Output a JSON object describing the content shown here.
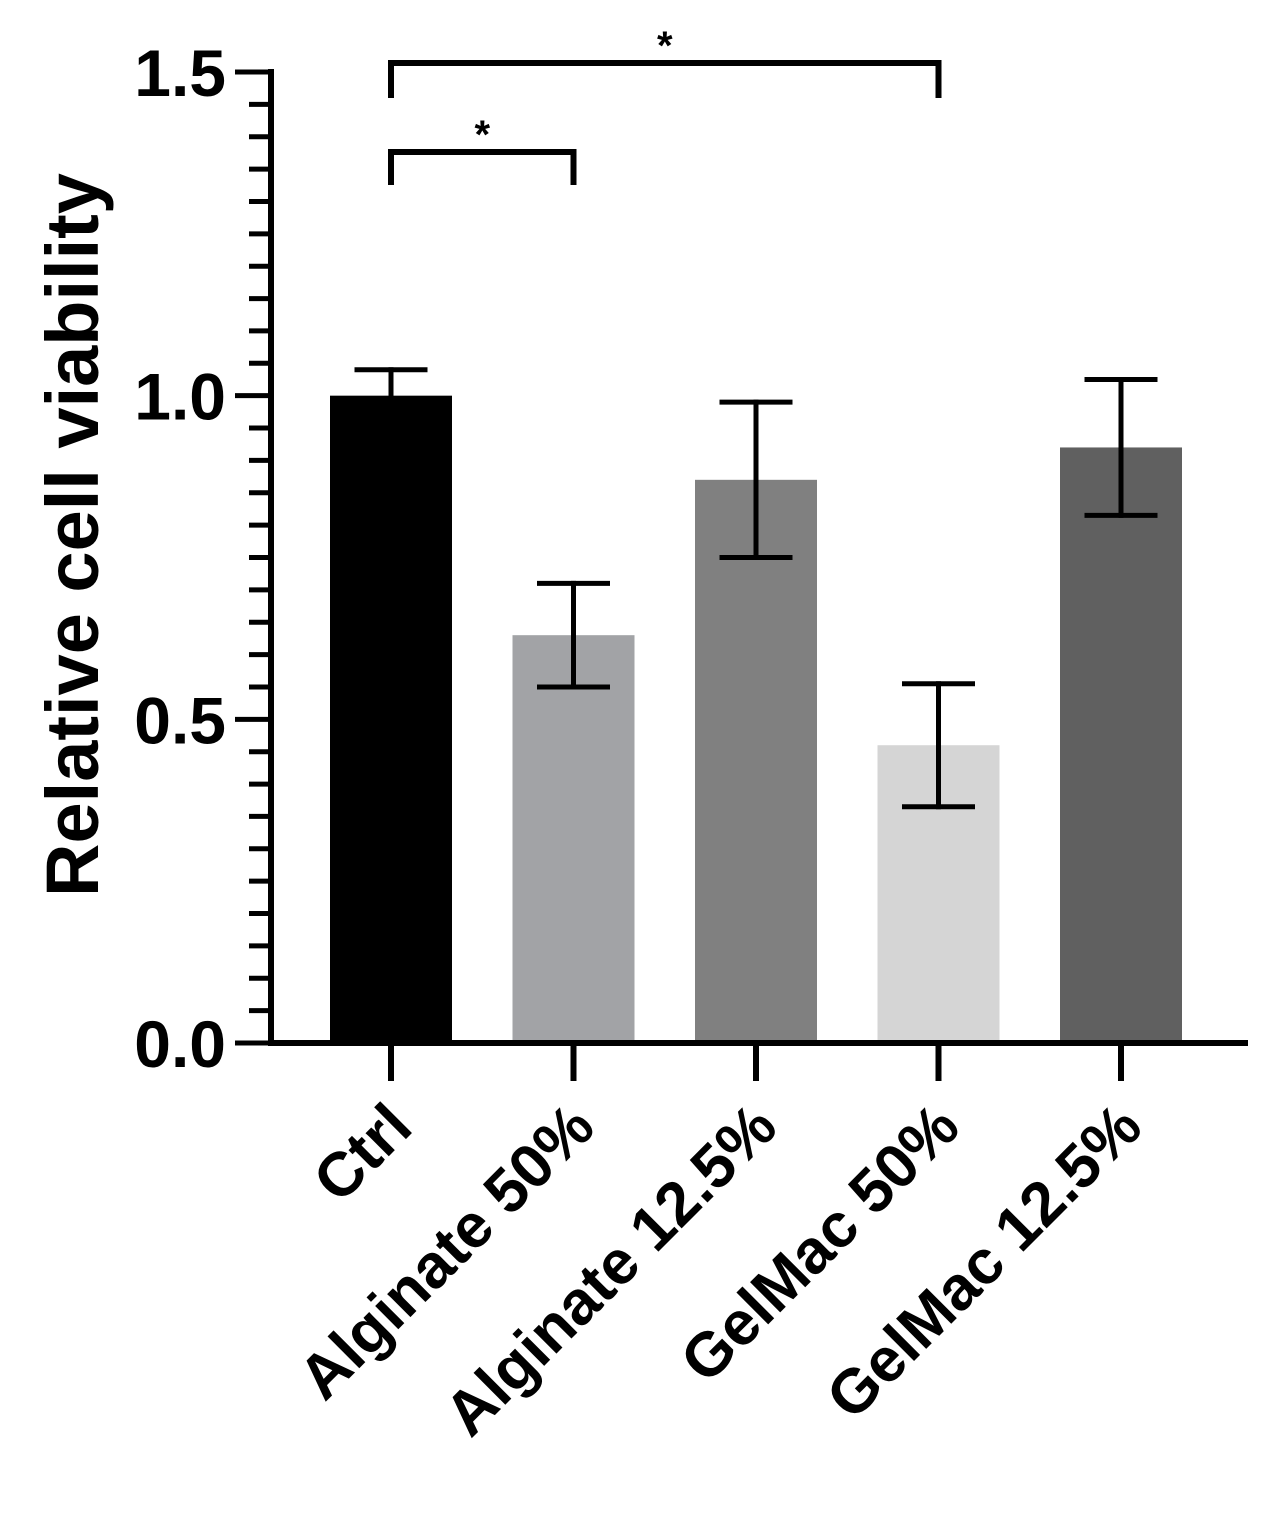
{
  "chart_data": {
    "type": "bar",
    "title": "",
    "xlabel": "",
    "ylabel": "Relative cell viability",
    "ylim": [
      0,
      1.5
    ],
    "y_ticks": [
      "0.0",
      "0.5",
      "1.0",
      "1.5"
    ],
    "y_minor_step": 0.05,
    "grid": false,
    "categories": [
      "Ctrl",
      "Alginate 50%",
      "Alginate 12.5%",
      "GelMac 50%",
      "GelMac 12.5%"
    ],
    "values": [
      1.0,
      0.63,
      0.87,
      0.46,
      0.92
    ],
    "error": [
      0.04,
      0.08,
      0.12,
      0.095,
      0.105
    ],
    "colors": [
      "#000000",
      "#a2a3a6",
      "#808080",
      "#d5d5d5",
      "#606060"
    ],
    "significance": [
      {
        "from": 0,
        "to": 1,
        "label": "*"
      },
      {
        "from": 0,
        "to": 3,
        "label": "*"
      }
    ]
  }
}
